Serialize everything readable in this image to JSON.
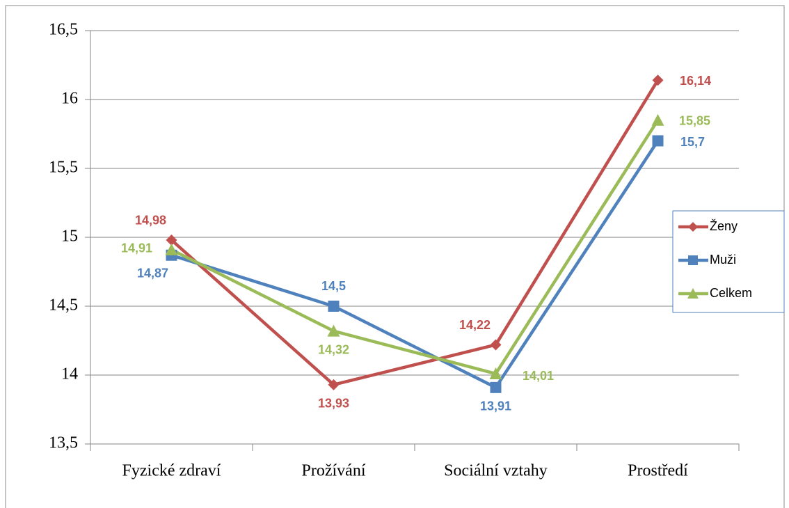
{
  "chart_data": {
    "type": "line",
    "categories": [
      "Fyzické zdraví",
      "Prožívání",
      "Sociální vztahy",
      "Prostředí"
    ],
    "series": [
      {
        "name": "Ženy",
        "color": "#c0504d",
        "marker": "diamond",
        "values": [
          14.98,
          13.93,
          14.22,
          16.14
        ],
        "value_labels": [
          "14,98",
          "13,93",
          "14,22",
          "16,14"
        ]
      },
      {
        "name": "Muži",
        "color": "#4f81bd",
        "marker": "square",
        "values": [
          14.87,
          14.5,
          13.91,
          15.7
        ],
        "value_labels": [
          "14,87",
          "14,5",
          "13,91",
          "15,7"
        ]
      },
      {
        "name": "Celkem",
        "color": "#9bbb59",
        "marker": "triangle",
        "values": [
          14.91,
          14.32,
          14.01,
          15.85
        ],
        "value_labels": [
          "14,91",
          "14,32",
          "14,01",
          "15,85"
        ]
      }
    ],
    "ylim": [
      13.5,
      16.5
    ],
    "yticks": [
      {
        "value": 13.5,
        "label": "13,5"
      },
      14,
      {
        "value": 14.5,
        "label": "14,5"
      },
      15,
      {
        "value": 15.5,
        "label": "15,5"
      },
      16,
      {
        "value": 16.5,
        "label": "16,5"
      }
    ],
    "grid": true,
    "legend": "right"
  }
}
